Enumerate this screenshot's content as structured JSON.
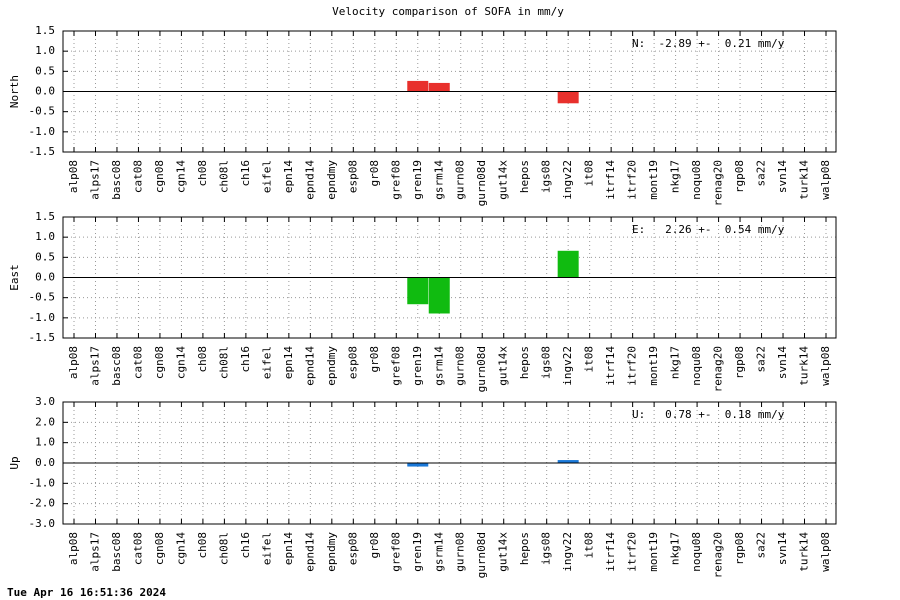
{
  "title": "Velocity comparison of SOFA in mm/y",
  "footer": "Tue Apr 16 16:51:36 2024",
  "chart_data": [
    {
      "type": "bar",
      "ylabel": "North",
      "annotation": "N:  -2.89 +-  0.21 mm/y",
      "color": "#e8302c",
      "grid": true,
      "categories": [
        "alp08",
        "alps17",
        "basc08",
        "cat08",
        "cgn08",
        "cgn14",
        "ch08",
        "ch08l",
        "ch16",
        "eifel",
        "epn14",
        "epnd14",
        "epndmy",
        "esp08",
        "gr08",
        "gref08",
        "gren19",
        "gsrm14",
        "gurn08",
        "gurn08d",
        "gut14x",
        "hepos",
        "igs08",
        "ingv22",
        "it08",
        "itrf14",
        "itrf20",
        "mont19",
        "nkg17",
        "noqu08",
        "renag20",
        "rgp08",
        "sa22",
        "svn14",
        "turk14",
        "walp08"
      ],
      "values": [
        null,
        null,
        null,
        null,
        null,
        null,
        null,
        null,
        null,
        null,
        null,
        null,
        null,
        null,
        null,
        null,
        0.25,
        0.2,
        null,
        null,
        null,
        null,
        null,
        -0.28,
        null,
        null,
        null,
        null,
        null,
        null,
        null,
        null,
        null,
        null,
        null,
        null
      ],
      "ylim": [
        -1.5,
        1.5
      ],
      "yticks": [
        -1.5,
        {
          "value": -1,
          "label": "-1.0"
        },
        -0.5,
        {
          "value": 0,
          "label": "0.0"
        },
        0.5,
        {
          "value": 1,
          "label": "1.0"
        },
        1.5
      ]
    },
    {
      "type": "bar",
      "ylabel": "East",
      "annotation": "E:   2.26 +-  0.54 mm/y",
      "color": "#10bb10",
      "grid": true,
      "categories": [
        "alp08",
        "alps17",
        "basc08",
        "cat08",
        "cgn08",
        "cgn14",
        "ch08",
        "ch08l",
        "ch16",
        "eifel",
        "epn14",
        "epnd14",
        "epndmy",
        "esp08",
        "gr08",
        "gref08",
        "gren19",
        "gsrm14",
        "gurn08",
        "gurn08d",
        "gut14x",
        "hepos",
        "igs08",
        "ingv22",
        "it08",
        "itrf14",
        "itrf20",
        "mont19",
        "nkg17",
        "noqu08",
        "renag20",
        "rgp08",
        "sa22",
        "svn14",
        "turk14",
        "walp08"
      ],
      "values": [
        null,
        null,
        null,
        null,
        null,
        null,
        null,
        null,
        null,
        null,
        null,
        null,
        null,
        null,
        null,
        null,
        -0.65,
        -0.88,
        null,
        null,
        null,
        null,
        null,
        0.65,
        null,
        null,
        null,
        null,
        null,
        null,
        null,
        null,
        null,
        null,
        null,
        null
      ],
      "ylim": [
        -1.5,
        1.5
      ],
      "yticks": [
        -1.5,
        {
          "value": -1,
          "label": "-1.0"
        },
        -0.5,
        {
          "value": 0,
          "label": "0.0"
        },
        0.5,
        {
          "value": 1,
          "label": "1.0"
        },
        1.5
      ]
    },
    {
      "type": "bar",
      "ylabel": "Up",
      "annotation": "U:   0.78 +-  0.18 mm/y",
      "color": "#1a78d8",
      "grid": true,
      "categories": [
        "alp08",
        "alps17",
        "basc08",
        "cat08",
        "cgn08",
        "cgn14",
        "ch08",
        "ch08l",
        "ch16",
        "eifel",
        "epn14",
        "epnd14",
        "epndmy",
        "esp08",
        "gr08",
        "gref08",
        "gren19",
        "gsrm14",
        "gurn08",
        "gurn08d",
        "gut14x",
        "hepos",
        "igs08",
        "ingv22",
        "it08",
        "itrf14",
        "itrf20",
        "mont19",
        "nkg17",
        "noqu08",
        "renag20",
        "rgp08",
        "sa22",
        "svn14",
        "turk14",
        "walp08"
      ],
      "values": [
        null,
        null,
        null,
        null,
        null,
        null,
        null,
        null,
        null,
        null,
        null,
        null,
        null,
        null,
        null,
        null,
        -0.15,
        null,
        null,
        null,
        null,
        null,
        null,
        0.12,
        null,
        null,
        null,
        null,
        null,
        null,
        null,
        null,
        null,
        null,
        null,
        null
      ],
      "ylim": [
        -3,
        3
      ],
      "yticks": [
        {
          "value": -3,
          "label": "-3.0"
        },
        {
          "value": -2,
          "label": "-2.0"
        },
        {
          "value": -1,
          "label": "-1.0"
        },
        {
          "value": 0,
          "label": "0.0"
        },
        {
          "value": 1,
          "label": "1.0"
        },
        {
          "value": 2,
          "label": "2.0"
        },
        {
          "value": 3,
          "label": "3.0"
        }
      ]
    }
  ]
}
